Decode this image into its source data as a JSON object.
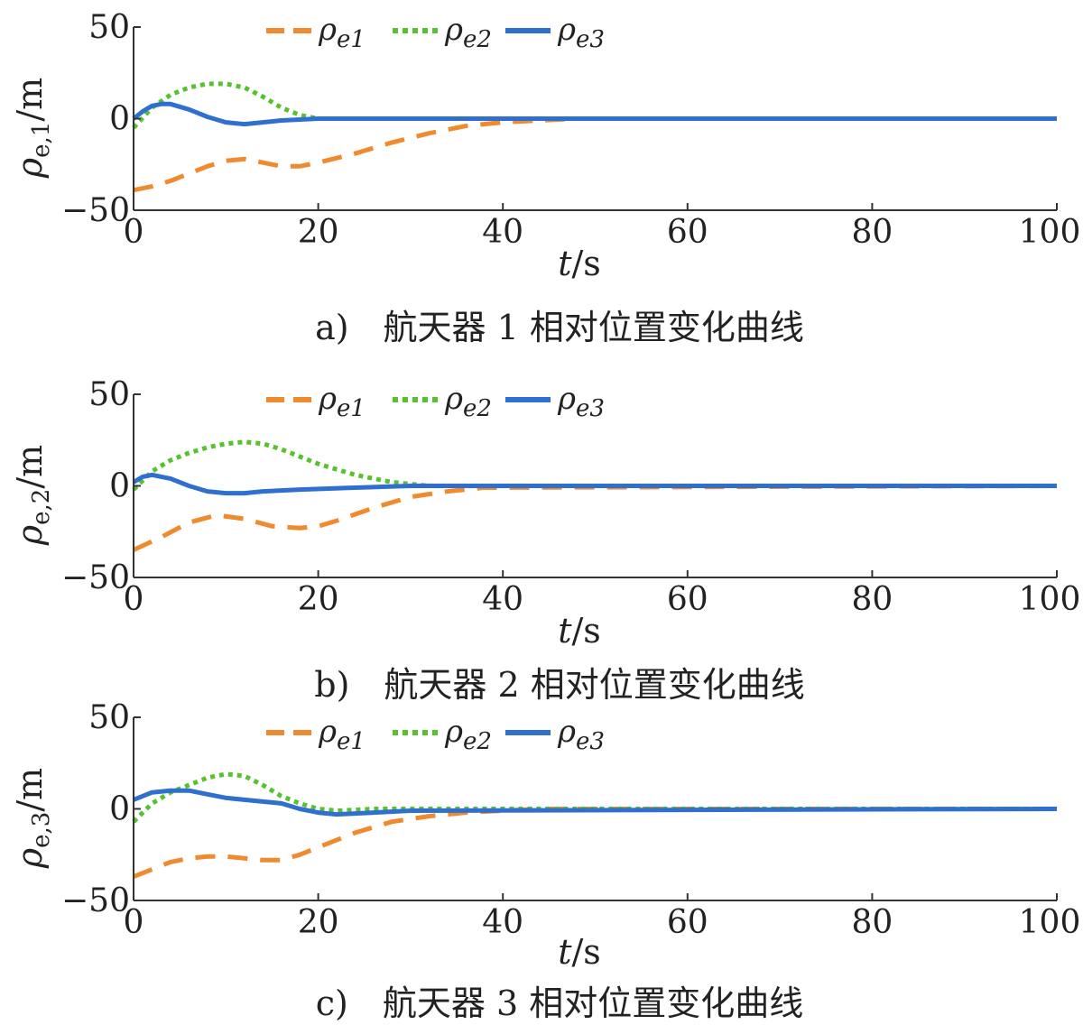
{
  "chart_data": [
    {
      "type": "line",
      "caption": "a)　航天器 1 相对位置变化曲线",
      "ylabel": "ρe,1/m",
      "xlabel": "t/s",
      "xlim": [
        0,
        100
      ],
      "ylim": [
        -50,
        50
      ],
      "xticks": [
        0,
        20,
        40,
        60,
        80,
        100
      ],
      "yticks": [
        50,
        0,
        -50
      ],
      "legend": [
        "ρe1",
        "ρe2",
        "ρe3"
      ],
      "series": [
        {
          "name": "ρe1",
          "color": "#f08a2e",
          "style": "dashed",
          "x": [
            0,
            2,
            4,
            6,
            8,
            10,
            12,
            14,
            16,
            18,
            20,
            24,
            28,
            32,
            36,
            40,
            44,
            48,
            100
          ],
          "y": [
            -39,
            -37,
            -34,
            -30,
            -26,
            -23,
            -22,
            -24,
            -26,
            -26,
            -24,
            -19,
            -13,
            -8,
            -4,
            -2,
            -1,
            0,
            0
          ]
        },
        {
          "name": "ρe2",
          "color": "#55c22e",
          "style": "dotted",
          "x": [
            0,
            2,
            4,
            6,
            8,
            10,
            12,
            14,
            16,
            18,
            20,
            24,
            28,
            100
          ],
          "y": [
            -5,
            6,
            13,
            17,
            19,
            19,
            17,
            12,
            6,
            2,
            0,
            0,
            0,
            0
          ]
        },
        {
          "name": "ρe3",
          "color": "#2f6fcf",
          "style": "solid",
          "x": [
            0,
            1,
            2,
            3,
            4,
            6,
            8,
            10,
            12,
            14,
            16,
            20,
            100
          ],
          "y": [
            0,
            4,
            7,
            8,
            8,
            5,
            1,
            -2,
            -3,
            -2,
            -1,
            0,
            0
          ]
        }
      ]
    },
    {
      "type": "line",
      "caption": "b)　航天器 2 相对位置变化曲线",
      "ylabel": "ρe,2/m",
      "xlabel": "t/s",
      "xlim": [
        0,
        100
      ],
      "ylim": [
        -50,
        50
      ],
      "xticks": [
        0,
        20,
        40,
        60,
        80,
        100
      ],
      "yticks": [
        50,
        0,
        -50
      ],
      "legend": [
        "ρe1",
        "ρe2",
        "ρe3"
      ],
      "series": [
        {
          "name": "ρe1",
          "color": "#f08a2e",
          "style": "dashed",
          "x": [
            0,
            3,
            6,
            9,
            12,
            15,
            18,
            20,
            22,
            26,
            30,
            34,
            38,
            100
          ],
          "y": [
            -35,
            -28,
            -20,
            -16,
            -18,
            -22,
            -23,
            -22,
            -19,
            -12,
            -6,
            -3,
            -1,
            0
          ]
        },
        {
          "name": "ρe2",
          "color": "#55c22e",
          "style": "dotted",
          "x": [
            0,
            2,
            4,
            6,
            8,
            10,
            12,
            14,
            16,
            18,
            20,
            24,
            28,
            32,
            36,
            100
          ],
          "y": [
            -2,
            8,
            14,
            18,
            21,
            23,
            24,
            23,
            20,
            16,
            12,
            6,
            2,
            0,
            0,
            0
          ]
        },
        {
          "name": "ρe3",
          "color": "#2f6fcf",
          "style": "solid",
          "x": [
            0,
            1,
            2,
            3,
            4,
            6,
            8,
            10,
            12,
            14,
            18,
            24,
            30,
            100
          ],
          "y": [
            2,
            5,
            6,
            5,
            4,
            0,
            -3,
            -4,
            -4,
            -3,
            -2,
            -1,
            0,
            0
          ]
        }
      ]
    },
    {
      "type": "line",
      "caption": "c)　航天器 3 相对位置变化曲线",
      "ylabel": "ρe,3/m",
      "xlabel": "t/s",
      "xlim": [
        0,
        100
      ],
      "ylim": [
        -50,
        50
      ],
      "xticks": [
        0,
        20,
        40,
        60,
        80,
        100
      ],
      "yticks": [
        50,
        0,
        -50
      ],
      "legend": [
        "ρe1",
        "ρe2",
        "ρe3"
      ],
      "series": [
        {
          "name": "ρe1",
          "color": "#f08a2e",
          "style": "dashed",
          "x": [
            0,
            2,
            4,
            6,
            8,
            10,
            12,
            14,
            16,
            18,
            20,
            24,
            28,
            32,
            36,
            40,
            44,
            100
          ],
          "y": [
            -37,
            -33,
            -29,
            -27,
            -26,
            -26,
            -27,
            -28,
            -28,
            -25,
            -21,
            -13,
            -7,
            -4,
            -2,
            -1,
            0,
            0
          ]
        },
        {
          "name": "ρe2",
          "color": "#55c22e",
          "style": "dotted",
          "x": [
            0,
            2,
            4,
            6,
            8,
            10,
            12,
            14,
            16,
            18,
            20,
            22,
            26,
            100
          ],
          "y": [
            -7,
            3,
            9,
            13,
            17,
            19,
            18,
            13,
            7,
            3,
            0,
            -1,
            0,
            0
          ]
        },
        {
          "name": "ρe3",
          "color": "#2f6fcf",
          "style": "solid",
          "x": [
            0,
            2,
            4,
            6,
            8,
            10,
            12,
            14,
            16,
            18,
            20,
            22,
            26,
            30,
            100
          ],
          "y": [
            5,
            9,
            10,
            10,
            8,
            6,
            5,
            4,
            3,
            0,
            -2,
            -3,
            -2,
            -1,
            0
          ]
        }
      ]
    }
  ]
}
